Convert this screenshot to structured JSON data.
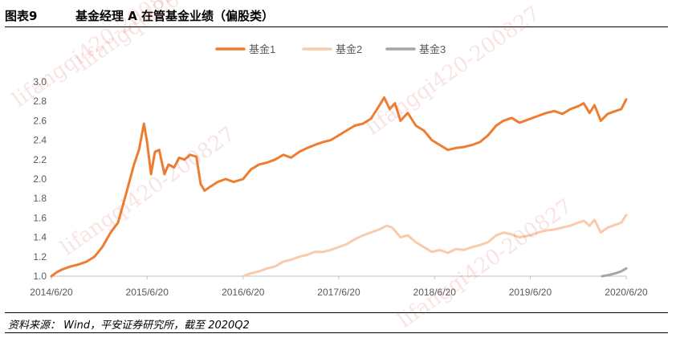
{
  "header": {
    "figure_number": "图表9",
    "title": "基金经理 A 在管基金业绩（偏股类）"
  },
  "source_note": "资料来源： Wind，平安证券研究所，截至 2020Q2",
  "watermark": "lifangqi420-200827",
  "colors": {
    "fund1": "#ED7D31",
    "fund2": "#F8CBAD",
    "fund3": "#A5A5A5"
  },
  "chart_data": {
    "type": "line",
    "title": "",
    "xlabel": "",
    "ylabel": "",
    "ylim": [
      1.0,
      3.0
    ],
    "yticks": [
      "1.0",
      "1.2",
      "1.4",
      "1.6",
      "1.8",
      "2.0",
      "2.2",
      "2.4",
      "2.6",
      "2.8",
      "3.0"
    ],
    "xticks": [
      "2014/6/20",
      "2015/6/20",
      "2016/6/20",
      "2017/6/20",
      "2018/6/20",
      "2019/6/20",
      "2020/6/20"
    ],
    "xlim": [
      "2014-06-20",
      "2020-06-20"
    ],
    "legend_position": "top-center",
    "grid": false,
    "series": [
      {
        "name": "基金1",
        "color": "#ED7D31",
        "points": [
          [
            "2014-06-20",
            1.0
          ],
          [
            "2014-07-10",
            1.04
          ],
          [
            "2014-08-01",
            1.07
          ],
          [
            "2014-09-01",
            1.1
          ],
          [
            "2014-10-01",
            1.12
          ],
          [
            "2014-11-01",
            1.15
          ],
          [
            "2014-12-01",
            1.2
          ],
          [
            "2014-12-31",
            1.3
          ],
          [
            "2015-02-01",
            1.45
          ],
          [
            "2015-03-01",
            1.55
          ],
          [
            "2015-04-01",
            1.85
          ],
          [
            "2015-05-01",
            2.15
          ],
          [
            "2015-05-20",
            2.3
          ],
          [
            "2015-06-08",
            2.57
          ],
          [
            "2015-06-20",
            2.38
          ],
          [
            "2015-07-05",
            2.05
          ],
          [
            "2015-07-20",
            2.28
          ],
          [
            "2015-08-05",
            2.3
          ],
          [
            "2015-08-25",
            2.05
          ],
          [
            "2015-09-10",
            2.15
          ],
          [
            "2015-10-01",
            2.12
          ],
          [
            "2015-10-20",
            2.22
          ],
          [
            "2015-11-10",
            2.2
          ],
          [
            "2015-12-01",
            2.25
          ],
          [
            "2015-12-25",
            2.23
          ],
          [
            "2016-01-10",
            1.95
          ],
          [
            "2016-01-25",
            1.88
          ],
          [
            "2016-02-15",
            1.92
          ],
          [
            "2016-03-15",
            1.97
          ],
          [
            "2016-04-15",
            2.0
          ],
          [
            "2016-05-15",
            1.97
          ],
          [
            "2016-06-20",
            2.0
          ],
          [
            "2016-07-20",
            2.1
          ],
          [
            "2016-08-20",
            2.15
          ],
          [
            "2016-09-20",
            2.17
          ],
          [
            "2016-10-20",
            2.2
          ],
          [
            "2016-11-20",
            2.25
          ],
          [
            "2016-12-20",
            2.22
          ],
          [
            "2017-01-20",
            2.28
          ],
          [
            "2017-02-20",
            2.32
          ],
          [
            "2017-03-20",
            2.35
          ],
          [
            "2017-04-20",
            2.38
          ],
          [
            "2017-05-20",
            2.4
          ],
          [
            "2017-06-20",
            2.45
          ],
          [
            "2017-07-20",
            2.5
          ],
          [
            "2017-08-20",
            2.55
          ],
          [
            "2017-09-20",
            2.57
          ],
          [
            "2017-10-20",
            2.62
          ],
          [
            "2017-11-20",
            2.75
          ],
          [
            "2017-12-10",
            2.84
          ],
          [
            "2017-12-31",
            2.72
          ],
          [
            "2018-01-20",
            2.78
          ],
          [
            "2018-02-10",
            2.6
          ],
          [
            "2018-03-10",
            2.68
          ],
          [
            "2018-04-10",
            2.55
          ],
          [
            "2018-05-10",
            2.5
          ],
          [
            "2018-06-10",
            2.4
          ],
          [
            "2018-07-10",
            2.35
          ],
          [
            "2018-08-10",
            2.3
          ],
          [
            "2018-09-10",
            2.32
          ],
          [
            "2018-10-10",
            2.33
          ],
          [
            "2018-11-10",
            2.35
          ],
          [
            "2018-12-10",
            2.38
          ],
          [
            "2019-01-10",
            2.45
          ],
          [
            "2019-02-10",
            2.55
          ],
          [
            "2019-03-10",
            2.6
          ],
          [
            "2019-04-10",
            2.63
          ],
          [
            "2019-05-10",
            2.58
          ],
          [
            "2019-06-20",
            2.62
          ],
          [
            "2019-07-20",
            2.65
          ],
          [
            "2019-08-20",
            2.68
          ],
          [
            "2019-09-20",
            2.7
          ],
          [
            "2019-10-20",
            2.67
          ],
          [
            "2019-11-20",
            2.72
          ],
          [
            "2019-12-20",
            2.75
          ],
          [
            "2020-01-10",
            2.78
          ],
          [
            "2020-02-01",
            2.68
          ],
          [
            "2020-02-20",
            2.76
          ],
          [
            "2020-03-15",
            2.6
          ],
          [
            "2020-04-10",
            2.67
          ],
          [
            "2020-05-10",
            2.7
          ],
          [
            "2020-06-01",
            2.72
          ],
          [
            "2020-06-20",
            2.82
          ]
        ]
      },
      {
        "name": "基金2",
        "color": "#F8CBAD",
        "points": [
          [
            "2016-06-20",
            1.0
          ],
          [
            "2016-07-20",
            1.03
          ],
          [
            "2016-08-20",
            1.05
          ],
          [
            "2016-09-20",
            1.08
          ],
          [
            "2016-10-20",
            1.1
          ],
          [
            "2016-11-20",
            1.15
          ],
          [
            "2016-12-20",
            1.17
          ],
          [
            "2017-01-20",
            1.2
          ],
          [
            "2017-02-20",
            1.22
          ],
          [
            "2017-03-20",
            1.25
          ],
          [
            "2017-04-20",
            1.25
          ],
          [
            "2017-05-20",
            1.27
          ],
          [
            "2017-06-20",
            1.3
          ],
          [
            "2017-07-20",
            1.33
          ],
          [
            "2017-08-20",
            1.38
          ],
          [
            "2017-09-20",
            1.42
          ],
          [
            "2017-10-20",
            1.45
          ],
          [
            "2017-11-20",
            1.48
          ],
          [
            "2017-12-20",
            1.52
          ],
          [
            "2018-01-10",
            1.5
          ],
          [
            "2018-02-10",
            1.4
          ],
          [
            "2018-03-10",
            1.42
          ],
          [
            "2018-04-10",
            1.35
          ],
          [
            "2018-05-10",
            1.3
          ],
          [
            "2018-06-10",
            1.25
          ],
          [
            "2018-07-10",
            1.27
          ],
          [
            "2018-08-10",
            1.24
          ],
          [
            "2018-09-10",
            1.28
          ],
          [
            "2018-10-10",
            1.27
          ],
          [
            "2018-11-10",
            1.3
          ],
          [
            "2018-12-10",
            1.32
          ],
          [
            "2019-01-10",
            1.35
          ],
          [
            "2019-02-10",
            1.42
          ],
          [
            "2019-03-10",
            1.45
          ],
          [
            "2019-04-10",
            1.43
          ],
          [
            "2019-05-10",
            1.4
          ],
          [
            "2019-06-20",
            1.42
          ],
          [
            "2019-07-20",
            1.45
          ],
          [
            "2019-08-20",
            1.47
          ],
          [
            "2019-09-20",
            1.48
          ],
          [
            "2019-10-20",
            1.5
          ],
          [
            "2019-11-20",
            1.52
          ],
          [
            "2019-12-20",
            1.55
          ],
          [
            "2020-01-10",
            1.57
          ],
          [
            "2020-02-01",
            1.52
          ],
          [
            "2020-02-20",
            1.58
          ],
          [
            "2020-03-15",
            1.45
          ],
          [
            "2020-04-10",
            1.5
          ],
          [
            "2020-05-10",
            1.53
          ],
          [
            "2020-06-01",
            1.55
          ],
          [
            "2020-06-20",
            1.63
          ]
        ]
      },
      {
        "name": "基金3",
        "color": "#A5A5A5",
        "points": [
          [
            "2020-03-20",
            1.0
          ],
          [
            "2020-04-10",
            1.01
          ],
          [
            "2020-05-10",
            1.03
          ],
          [
            "2020-06-01",
            1.05
          ],
          [
            "2020-06-20",
            1.08
          ]
        ]
      }
    ]
  }
}
